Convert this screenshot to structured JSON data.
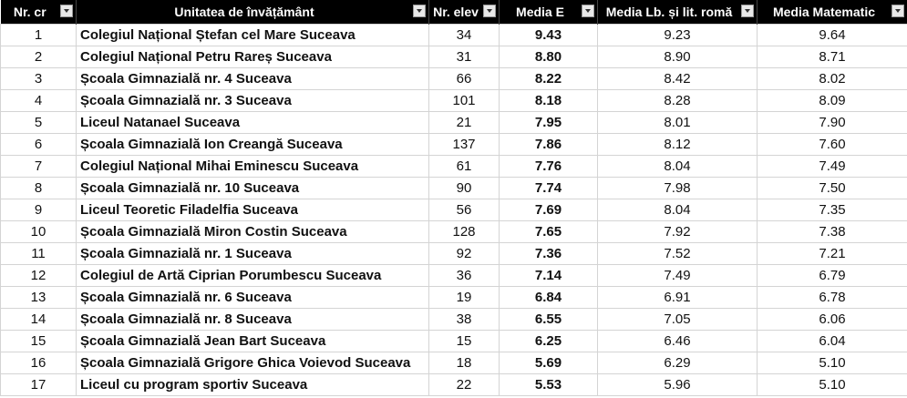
{
  "table": {
    "header": [
      "Nr. cr",
      "Unitatea de învățământ",
      "Nr. elev",
      "Media E",
      "Media Lb. și lit. romă",
      "Media Matematic"
    ],
    "rows": [
      [
        "1",
        "Colegiul Național Ștefan cel Mare Suceava",
        "34",
        "9.43",
        "9.23",
        "9.64"
      ],
      [
        "2",
        "Colegiul Național Petru Rareș Suceava",
        "31",
        "8.80",
        "8.90",
        "8.71"
      ],
      [
        "3",
        "Școala Gimnazială nr. 4 Suceava",
        "66",
        "8.22",
        "8.42",
        "8.02"
      ],
      [
        "4",
        "Școala Gimnazială nr. 3 Suceava",
        "101",
        "8.18",
        "8.28",
        "8.09"
      ],
      [
        "5",
        "Liceul Natanael Suceava",
        "21",
        "7.95",
        "8.01",
        "7.90"
      ],
      [
        "6",
        "Școala Gimnazială Ion Creangă Suceava",
        "137",
        "7.86",
        "8.12",
        "7.60"
      ],
      [
        "7",
        "Colegiul Național Mihai Eminescu Suceava",
        "61",
        "7.76",
        "8.04",
        "7.49"
      ],
      [
        "8",
        "Școala Gimnazială nr. 10 Suceava",
        "90",
        "7.74",
        "7.98",
        "7.50"
      ],
      [
        "9",
        "Liceul Teoretic Filadelfia Suceava",
        "56",
        "7.69",
        "8.04",
        "7.35"
      ],
      [
        "10",
        "Școala Gimnazială Miron Costin Suceava",
        "128",
        "7.65",
        "7.92",
        "7.38"
      ],
      [
        "11",
        "Școala Gimnazială nr. 1 Suceava",
        "92",
        "7.36",
        "7.52",
        "7.21"
      ],
      [
        "12",
        "Colegiul de Artă Ciprian Porumbescu Suceava",
        "36",
        "7.14",
        "7.49",
        "6.79"
      ],
      [
        "13",
        "Școala Gimnazială nr. 6 Suceava",
        "19",
        "6.84",
        "6.91",
        "6.78"
      ],
      [
        "14",
        "Școala Gimnazială nr. 8 Suceava",
        "38",
        "6.55",
        "7.05",
        "6.06"
      ],
      [
        "15",
        "Școala Gimnazială Jean Bart Suceava",
        "15",
        "6.25",
        "6.46",
        "6.04"
      ],
      [
        "16",
        "Școala Gimnazială Grigore Ghica Voievod Suceava",
        "18",
        "5.69",
        "6.29",
        "5.10"
      ],
      [
        "17",
        "Liceul cu program sportiv Suceava",
        "22",
        "5.53",
        "5.96",
        "5.10"
      ]
    ]
  }
}
